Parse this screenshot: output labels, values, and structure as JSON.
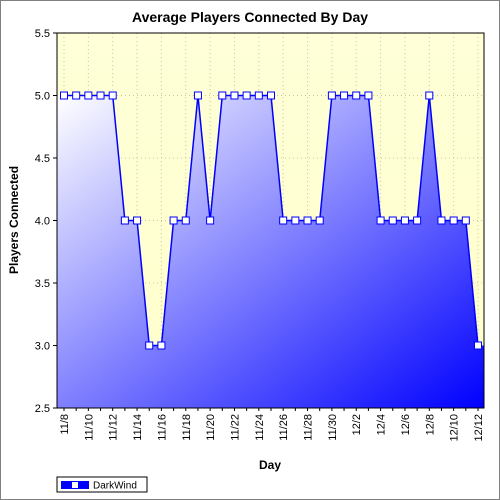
{
  "chart_data": {
    "type": "area",
    "title": "Average Players Connected By Day",
    "xlabel": "Day",
    "ylabel": "Players Connected",
    "ylim": [
      2.5,
      5.5
    ],
    "yticks": [
      "2.5",
      "3.0",
      "3.5",
      "4.0",
      "4.5",
      "5.0",
      "5.5"
    ],
    "x": [
      "11/8",
      "11/9",
      "11/10",
      "11/11",
      "11/12",
      "11/13",
      "11/14",
      "11/15",
      "11/16",
      "11/17",
      "11/18",
      "11/19",
      "11/20",
      "11/21",
      "11/22",
      "11/23",
      "11/24",
      "11/25",
      "11/26",
      "11/27",
      "11/28",
      "11/29",
      "11/30",
      "12/1",
      "12/2",
      "12/3",
      "12/4",
      "12/5",
      "12/6",
      "12/7",
      "12/8",
      "12/9",
      "12/10",
      "12/11",
      "12/12"
    ],
    "xtick_labels": [
      "11/8",
      "11/10",
      "11/12",
      "11/14",
      "11/16",
      "11/18",
      "11/20",
      "11/22",
      "11/24",
      "11/26",
      "11/28",
      "11/30",
      "12/2",
      "12/4",
      "12/6",
      "12/8",
      "12/10",
      "12/12"
    ],
    "series": [
      {
        "name": "DarkWind",
        "color": "#0000ff",
        "values": [
          5,
          5,
          5,
          5,
          5,
          4,
          4,
          3,
          3,
          4,
          4,
          5,
          4,
          5,
          5,
          5,
          5,
          5,
          4,
          4,
          4,
          4,
          5,
          5,
          5,
          5,
          4,
          4,
          4,
          4,
          5,
          4,
          4,
          4,
          3
        ]
      }
    ],
    "grid": true,
    "legend": "bottom-left"
  }
}
